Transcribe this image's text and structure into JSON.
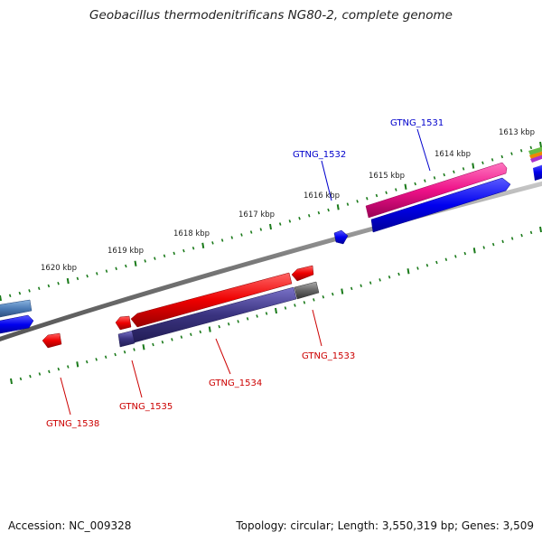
{
  "title": "Geobacillus thermodenitrificans NG80-2, complete genome",
  "footer": {
    "accession": "Accession: NC_009328",
    "topology": "Topology: circular; Length: 3,550,319 bp; Genes: 3,509"
  },
  "colors": {
    "forward_label": "#0000cc",
    "reverse_label": "#cc0000",
    "backbone": "#8a8a8a",
    "tick": "#1a7a1a",
    "gene_blue": "#0000ee",
    "gene_red": "#ee0000",
    "gene_pink": "#ee1188",
    "gene_navy": "#3a3380",
    "gene_steel": "#4a7ab5",
    "gene_gray": "#666666"
  },
  "kbp_labels": [
    "1620 kbp",
    "1619 kbp",
    "1618 kbp",
    "1617 kbp",
    "1616 kbp",
    "1615 kbp",
    "1614 kbp",
    "1613 kbp"
  ],
  "gene_labels": {
    "forward": [
      "GTNG_1532",
      "GTNG_1531"
    ],
    "reverse": [
      "GTNG_1538",
      "GTNG_1535",
      "GTNG_1534",
      "GTNG_1533"
    ]
  }
}
